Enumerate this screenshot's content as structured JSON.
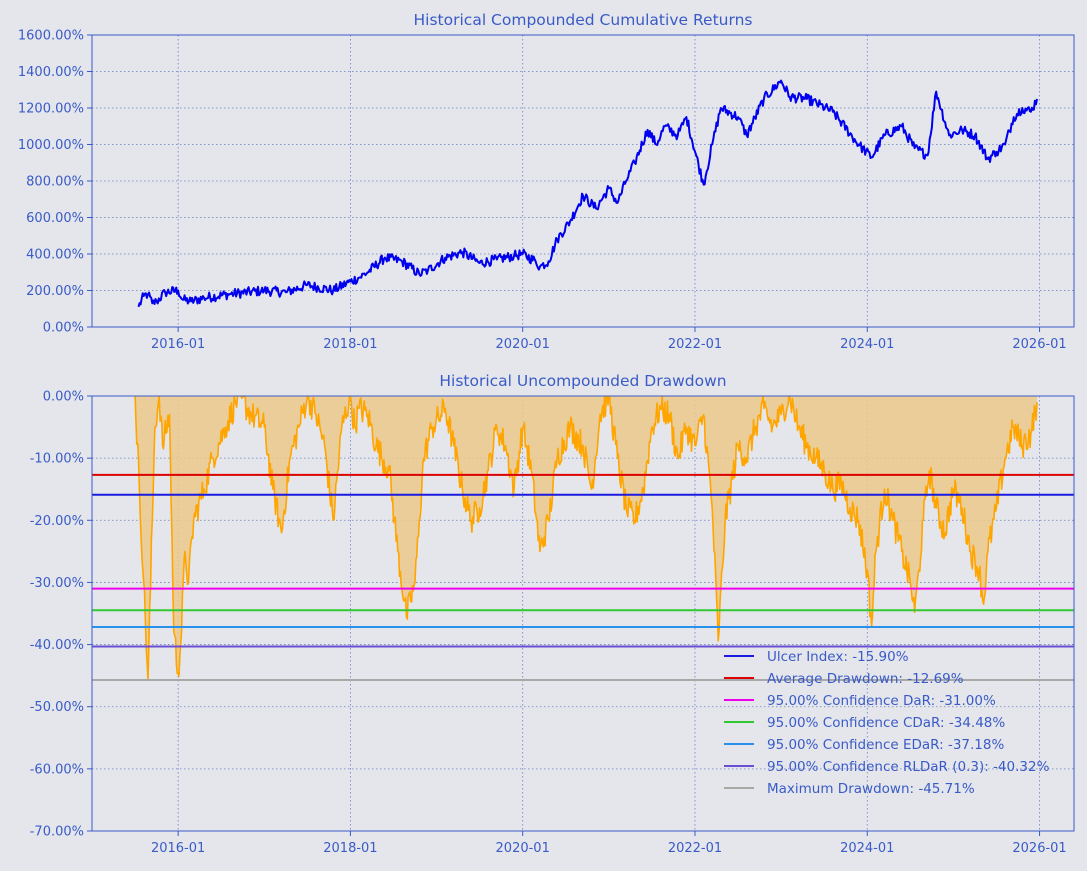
{
  "colors": {
    "background": "#e4e6ec",
    "axis_text": "#3a5bc7",
    "returns_line": "#0000ee",
    "drawdown_line": "#ffa500",
    "drawdown_fill": "#ecc88c"
  },
  "chart_data": [
    {
      "type": "line",
      "title": "Historical Compounded Cumulative Returns",
      "xlabel": "",
      "ylabel": "",
      "x_range": [
        2015.0,
        2026.4
      ],
      "ylim": [
        0,
        1600
      ],
      "y_ticks": [
        0,
        200,
        400,
        600,
        800,
        1000,
        1200,
        1400,
        1600
      ],
      "y_tick_labels": [
        "0.00%",
        "200.00%",
        "400.00%",
        "600.00%",
        "800.00%",
        "1000.00%",
        "1200.00%",
        "1400.00%",
        "1600.00%"
      ],
      "x_ticks": [
        2016.0,
        2018.0,
        2020.0,
        2022.0,
        2024.0,
        2026.0
      ],
      "x_tick_labels": [
        "2016-01",
        "2018-01",
        "2020-01",
        "2022-01",
        "2024-01",
        "2026-01"
      ],
      "grid": true,
      "series": [
        {
          "name": "Cumulative Returns",
          "x": [
            2015.54,
            2015.6,
            2015.65,
            2015.7,
            2015.75,
            2015.85,
            2016.0,
            2016.05,
            2016.15,
            2016.3,
            2016.6,
            2017.0,
            2017.25,
            2017.5,
            2017.8,
            2018.0,
            2018.1,
            2018.2,
            2018.4,
            2018.6,
            2018.8,
            2018.9,
            2019.1,
            2019.3,
            2019.5,
            2019.7,
            2019.9,
            2020.0,
            2020.15,
            2020.2,
            2020.3,
            2020.4,
            2020.55,
            2020.7,
            2020.85,
            2021.0,
            2021.1,
            2021.2,
            2021.3,
            2021.45,
            2021.55,
            2021.65,
            2021.8,
            2021.9,
            2022.1,
            2022.2,
            2022.3,
            2022.5,
            2022.6,
            2022.8,
            2023.0,
            2023.1,
            2023.3,
            2023.6,
            2023.9,
            2024.05,
            2024.2,
            2024.4,
            2024.55,
            2024.7,
            2024.8,
            2024.95,
            2025.1,
            2025.25,
            2025.4,
            2025.5,
            2025.6,
            2025.7,
            2025.8,
            2025.9,
            2025.97
          ],
          "values": [
            110,
            170,
            180,
            130,
            140,
            190,
            200,
            150,
            140,
            160,
            180,
            200,
            190,
            230,
            200,
            250,
            270,
            300,
            380,
            360,
            290,
            310,
            380,
            410,
            350,
            370,
            390,
            400,
            360,
            330,
            360,
            480,
            580,
            720,
            650,
            760,
            680,
            800,
            900,
            1080,
            1000,
            1100,
            1050,
            1150,
            780,
            1000,
            1200,
            1150,
            1050,
            1250,
            1350,
            1260,
            1250,
            1180,
            1000,
            930,
            1050,
            1100,
            980,
            940,
            1290,
            1050,
            1080,
            1050,
            920,
            960,
            1000,
            1150,
            1200,
            1180,
            1250
          ]
        }
      ]
    },
    {
      "type": "area",
      "title": "Historical Uncompounded Drawdown",
      "xlabel": "",
      "ylabel": "",
      "x_range": [
        2015.0,
        2026.4
      ],
      "ylim": [
        -70,
        0
      ],
      "y_ticks": [
        0,
        -10,
        -20,
        -30,
        -40,
        -50,
        -60,
        -70
      ],
      "y_tick_labels": [
        "0.00%",
        "-10.00%",
        "-20.00%",
        "-30.00%",
        "-40.00%",
        "-50.00%",
        "-60.00%",
        "-70.00%"
      ],
      "x_ticks": [
        2016.0,
        2018.0,
        2020.0,
        2022.0,
        2024.0,
        2026.0
      ],
      "x_tick_labels": [
        "2016-01",
        "2018-01",
        "2020-01",
        "2022-01",
        "2024-01",
        "2026-01"
      ],
      "grid": true,
      "legend_position": "lower-right",
      "series": [
        {
          "name": "Drawdown",
          "x": [
            2015.5,
            2015.55,
            2015.6,
            2015.65,
            2015.7,
            2015.73,
            2015.78,
            2015.82,
            2015.9,
            2015.95,
            2016.0,
            2016.03,
            2016.08,
            2016.12,
            2016.18,
            2016.3,
            2016.4,
            2016.55,
            2016.7,
            2016.85,
            2017.0,
            2017.1,
            2017.2,
            2017.3,
            2017.4,
            2017.5,
            2017.6,
            2017.7,
            2017.8,
            2017.9,
            2018.0,
            2018.05,
            2018.1,
            2018.2,
            2018.3,
            2018.45,
            2018.55,
            2018.65,
            2018.75,
            2018.8,
            2018.85,
            2018.95,
            2019.1,
            2019.2,
            2019.3,
            2019.4,
            2019.5,
            2019.6,
            2019.7,
            2019.8,
            2019.9,
            2020.0,
            2020.1,
            2020.2,
            2020.3,
            2020.4,
            2020.55,
            2020.7,
            2020.8,
            2020.9,
            2021.0,
            2021.1,
            2021.2,
            2021.3,
            2021.4,
            2021.5,
            2021.6,
            2021.7,
            2021.8,
            2021.9,
            2022.0,
            2022.1,
            2022.2,
            2022.27,
            2022.35,
            2022.5,
            2022.6,
            2022.7,
            2022.8,
            2022.9,
            2023.0,
            2023.1,
            2023.2,
            2023.3,
            2023.4,
            2023.5,
            2023.6,
            2023.7,
            2023.8,
            2023.9,
            2024.0,
            2024.05,
            2024.1,
            2024.2,
            2024.3,
            2024.4,
            2024.5,
            2024.55,
            2024.6,
            2024.65,
            2024.72,
            2024.8,
            2024.9,
            2025.0,
            2025.1,
            2025.2,
            2025.3,
            2025.35,
            2025.4,
            2025.5,
            2025.6,
            2025.7,
            2025.8,
            2025.9,
            2025.97
          ],
          "values": [
            0,
            -15,
            -30,
            -45.7,
            -20,
            -5,
            0,
            -8,
            -3,
            -38,
            -44.5,
            -40,
            -25,
            -30,
            -20,
            -15,
            -10,
            -5,
            0,
            -3,
            -5,
            -15,
            -22,
            -10,
            -5,
            0,
            -3,
            -8,
            -20,
            -5,
            0,
            -5,
            -2,
            -3,
            -8,
            -12,
            -25,
            -35.5,
            -30,
            -20,
            -10,
            -5,
            -2,
            -8,
            -15,
            -20,
            -18,
            -12,
            -5,
            -8,
            -15,
            -5,
            -12,
            -25,
            -20,
            -10,
            -5,
            -8,
            -15,
            -3,
            0,
            -10,
            -18,
            -20,
            -15,
            -5,
            -2,
            -3,
            -10,
            -5,
            -8,
            -3,
            -18,
            -39.4,
            -20,
            -8,
            -10,
            -5,
            -2,
            -5,
            -3,
            0,
            -5,
            -8,
            -10,
            -12,
            -15,
            -14,
            -18,
            -20,
            -28,
            -37,
            -25,
            -15,
            -20,
            -25,
            -30,
            -34.8,
            -28,
            -20,
            -12,
            -18,
            -22,
            -15,
            -18,
            -25,
            -28,
            -33.5,
            -25,
            -18,
            -10,
            -5,
            -8,
            -6,
            -1
          ]
        }
      ],
      "reference_lines": [
        {
          "label": "Ulcer Index: -15.90%",
          "value": -15.9,
          "color": "#1a1ae0"
        },
        {
          "label": "Average Drawdown: -12.69%",
          "value": -12.69,
          "color": "#dd0000"
        },
        {
          "label": "95.00% Confidence DaR: -31.00%",
          "value": -31.0,
          "color": "#ee00ee"
        },
        {
          "label": "95.00% Confidence CDaR: -34.48%",
          "value": -34.48,
          "color": "#32c832"
        },
        {
          "label": "95.00% Confidence EDaR: -37.18%",
          "value": -37.18,
          "color": "#2a90ee"
        },
        {
          "label": "95.00% Confidence RLDaR (0.3): -40.32%",
          "value": -40.32,
          "color": "#6a4fd2"
        },
        {
          "label": "Maximum Drawdown: -45.71%",
          "value": -45.71,
          "color": "#a8a8a8"
        }
      ]
    }
  ]
}
